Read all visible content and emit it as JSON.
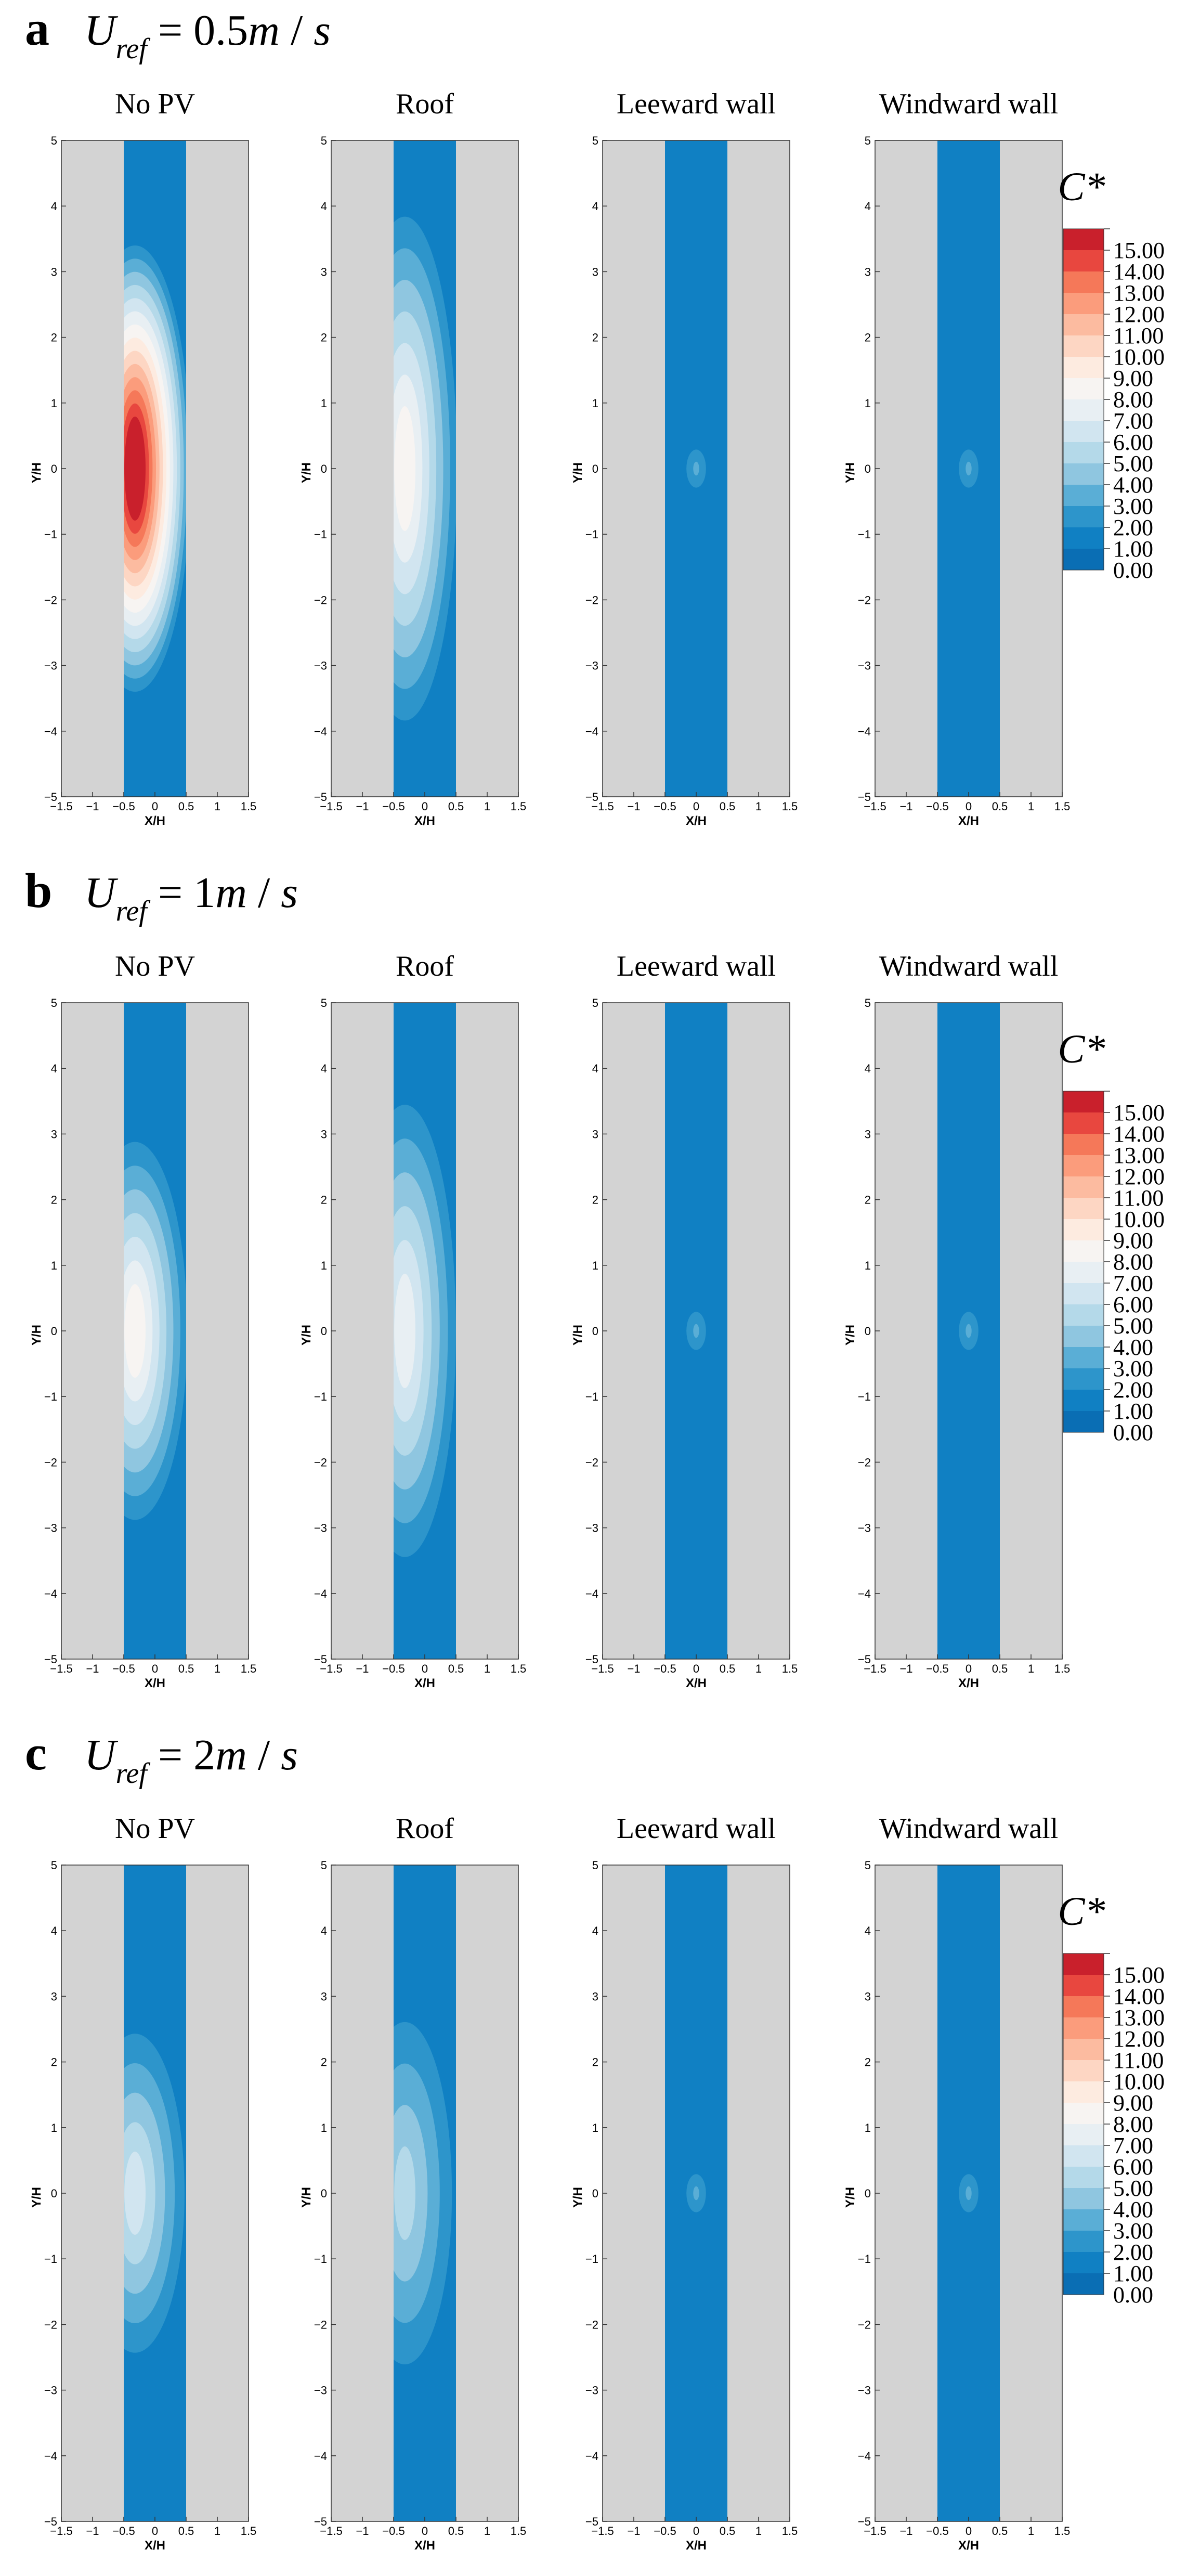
{
  "legend": {
    "title": "C*",
    "labels": [
      "15.00",
      "14.00",
      "13.00",
      "12.00",
      "11.00",
      "10.00",
      "9.00",
      "8.00",
      "7.00",
      "6.00",
      "5.00",
      "4.00",
      "3.00",
      "2.00",
      "1.00",
      "0.00"
    ],
    "colors": [
      "#c9202c",
      "#e8473f",
      "#f57859",
      "#fb9c7c",
      "#fcbba0",
      "#fdd6c3",
      "#fdebe0",
      "#f7f4f2",
      "#e8eff3",
      "#d1e5f0",
      "#b4d9e9",
      "#8fc6e0",
      "#5aaed6",
      "#2d95cb",
      "#1080c3",
      "#0a6eb4"
    ]
  },
  "rows": [
    {
      "letter": "a",
      "equation": {
        "var": "U",
        "sub": "ref",
        "rest": " = 0.5",
        "unit_m": "m",
        "unit_sep": " / ",
        "unit_s": "s"
      },
      "panels": [
        {
          "title": "No PV",
          "xlabel": "X/H",
          "ylabel": "Y/H",
          "ymax_level": 15,
          "spread": 1.0
        },
        {
          "title": "Roof",
          "xlabel": "X/H",
          "ylabel": "Y/H",
          "ymax_level": 8,
          "spread": 1.2
        },
        {
          "title": "Leeward wall",
          "xlabel": "X/H",
          "ylabel": "Y/H",
          "ymax_level": 3,
          "spread": 0.6
        },
        {
          "title": "Windward wall",
          "xlabel": "X/H",
          "ylabel": "Y/H",
          "ymax_level": 3,
          "spread": 0.6
        }
      ]
    },
    {
      "letter": "b",
      "equation": {
        "var": "U",
        "sub": "ref",
        "rest": " = 1",
        "unit_m": "m",
        "unit_sep": " / ",
        "unit_s": "s"
      },
      "panels": [
        {
          "title": "No PV",
          "xlabel": "X/H",
          "ylabel": "Y/H",
          "ymax_level": 8,
          "spread": 0.9
        },
        {
          "title": "Roof",
          "xlabel": "X/H",
          "ylabel": "Y/H",
          "ymax_level": 7,
          "spread": 1.1
        },
        {
          "title": "Leeward wall",
          "xlabel": "X/H",
          "ylabel": "Y/H",
          "ymax_level": 3,
          "spread": 0.6
        },
        {
          "title": "Windward wall",
          "xlabel": "X/H",
          "ylabel": "Y/H",
          "ymax_level": 3,
          "spread": 0.6
        }
      ]
    },
    {
      "letter": "c",
      "equation": {
        "var": "U",
        "sub": "ref",
        "rest": " = 2",
        "unit_m": "m",
        "unit_sep": " / ",
        "unit_s": "s"
      },
      "panels": [
        {
          "title": "No PV",
          "xlabel": "X/H",
          "ylabel": "Y/H",
          "ymax_level": 6,
          "spread": 0.8
        },
        {
          "title": "Roof",
          "xlabel": "X/H",
          "ylabel": "Y/H",
          "ymax_level": 5,
          "spread": 0.9
        },
        {
          "title": "Leeward wall",
          "xlabel": "X/H",
          "ylabel": "Y/H",
          "ymax_level": 3,
          "spread": 0.6
        },
        {
          "title": "Windward wall",
          "xlabel": "X/H",
          "ylabel": "Y/H",
          "ymax_level": 3,
          "spread": 0.6
        }
      ]
    }
  ],
  "chart_data": {
    "type": "heatmap",
    "xlim": [
      -1.5,
      1.5
    ],
    "ylim": [
      -5,
      5
    ],
    "x_ticks": [
      "−1.5",
      "−1",
      "−0.5",
      "0",
      "0.5",
      "1",
      "1.5"
    ],
    "y_ticks": [
      "5",
      "4",
      "3",
      "2",
      "1",
      "0",
      "−1",
      "−2",
      "−3",
      "−4",
      "−5"
    ],
    "xlabel": "X/H",
    "ylabel": "Y/H",
    "channel_x": [
      -0.5,
      0.5
    ],
    "colorbar_range": [
      0,
      15
    ],
    "grid": false
  }
}
